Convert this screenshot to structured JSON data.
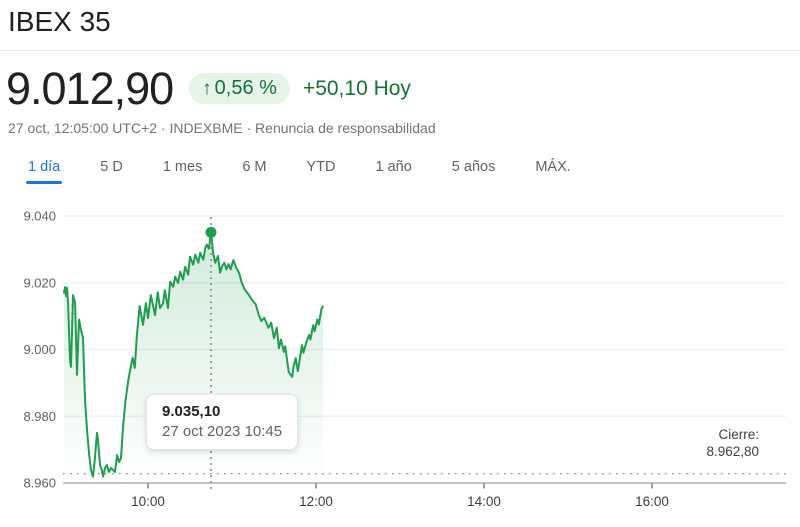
{
  "header": {
    "title": "IBEX 35",
    "price": "9.012,90",
    "change_badge": {
      "arrow": "↑",
      "percent": "0,56 %"
    },
    "change_today": "+50,10 Hoy",
    "subtitle_prefix": "27 oct, 12:05:00 UTC+2 · INDEXBME · ",
    "subtitle_disclaimer": "Renuncia de responsabilidad"
  },
  "tabs": [
    {
      "id": "1d",
      "label": "1 día",
      "active": true
    },
    {
      "id": "5d",
      "label": "5 D",
      "active": false
    },
    {
      "id": "1m",
      "label": "1 mes",
      "active": false
    },
    {
      "id": "6m",
      "label": "6 M",
      "active": false
    },
    {
      "id": "ytd",
      "label": "YTD",
      "active": false
    },
    {
      "id": "1y",
      "label": "1 año",
      "active": false
    },
    {
      "id": "5y",
      "label": "5 años",
      "active": false
    },
    {
      "id": "max",
      "label": "MÁX.",
      "active": false
    }
  ],
  "chart_data": {
    "type": "line",
    "title": "IBEX 35 intraday price, 27 oct 2023",
    "xlabel": "",
    "ylabel": "",
    "time_base": "09:00",
    "x_axis": {
      "range_minutes": [
        0,
        516
      ],
      "ticks": [
        {
          "label": "10:00",
          "minute": 60
        },
        {
          "label": "12:00",
          "minute": 180
        },
        {
          "label": "14:00",
          "minute": 300
        },
        {
          "label": "16:00",
          "minute": 420
        }
      ]
    },
    "y_axis": {
      "range": [
        8960,
        9040
      ],
      "ticks": [
        {
          "label": "9.040",
          "value": 9040
        },
        {
          "label": "9.020",
          "value": 9020
        },
        {
          "label": "9.000",
          "value": 9000
        },
        {
          "label": "8.980",
          "value": 8980
        },
        {
          "label": "8.960",
          "value": 8960
        }
      ]
    },
    "previous_close": {
      "label": "Cierre:",
      "display": "8.962,80",
      "value": 8962.8
    },
    "marker": {
      "minute": 105,
      "value": 9035.1,
      "time_label": "10:45"
    },
    "tooltip": {
      "price": "9.035,10",
      "datetime": "27 oct 2023 10:45"
    },
    "colors": {
      "line": "#1e9e4e",
      "fill_top": "rgba(27,158,74,0.20)",
      "fill_bottom": "rgba(27,158,74,0)",
      "grid": "#edeff0",
      "axis": "#9aa0a6",
      "dotted": "#80868b",
      "badge_bg": "#e6f4ea",
      "green_text": "#137333",
      "active_tab": "#1a73e8"
    },
    "series": [
      {
        "name": "IBEX 35",
        "points": [
          [
            0,
            9017
          ],
          [
            0.7,
            9018.7
          ],
          [
            1.5,
            9016
          ],
          [
            2.2,
            9018.5
          ],
          [
            3,
            9013
          ],
          [
            4.3,
            8997
          ],
          [
            5,
            8994.8
          ],
          [
            6.4,
            9016.3
          ],
          [
            7.9,
            9014
          ],
          [
            9.3,
            8992.4
          ],
          [
            10.7,
            9009
          ],
          [
            12.1,
            9006
          ],
          [
            13.6,
            9003.5
          ],
          [
            15,
            8985
          ],
          [
            16.4,
            8976
          ],
          [
            18,
            8968.4
          ],
          [
            19.3,
            8963.9
          ],
          [
            20.7,
            8961.9
          ],
          [
            22,
            8967
          ],
          [
            23.6,
            8975
          ],
          [
            24.3,
            8972.9
          ],
          [
            25.7,
            8965.4
          ],
          [
            27,
            8963.9
          ],
          [
            27.9,
            8961.9
          ],
          [
            29.3,
            8964.5
          ],
          [
            30.7,
            8965.4
          ],
          [
            32,
            8963.3
          ],
          [
            33.6,
            8964.5
          ],
          [
            35,
            8963.9
          ],
          [
            36.4,
            8963.3
          ],
          [
            37.9,
            8968.4
          ],
          [
            39.3,
            8966.3
          ],
          [
            40.7,
            8967.5
          ],
          [
            42,
            8975.9
          ],
          [
            44,
            8985
          ],
          [
            46,
            8991
          ],
          [
            48,
            8995.5
          ],
          [
            49,
            8997.5
          ],
          [
            50.6,
            8994.5
          ],
          [
            52,
            9004
          ],
          [
            54,
            9013
          ],
          [
            56.4,
            9007.4
          ],
          [
            58.5,
            9013.9
          ],
          [
            60,
            9009.4
          ],
          [
            62,
            9016.3
          ],
          [
            65,
            9010.3
          ],
          [
            67,
            9017.2
          ],
          [
            68.6,
            9012.4
          ],
          [
            70.8,
            9013.9
          ],
          [
            72,
            9017.8
          ],
          [
            74.3,
            9012.4
          ],
          [
            75.8,
            9020.3
          ],
          [
            78,
            9018.8
          ],
          [
            79.4,
            9021.8
          ],
          [
            81.5,
            9020
          ],
          [
            83,
            9023.3
          ],
          [
            85,
            9020.9
          ],
          [
            86.6,
            9024.8
          ],
          [
            88.7,
            9022.4
          ],
          [
            90,
            9027.8
          ],
          [
            92.3,
            9025.4
          ],
          [
            93.8,
            9028.4
          ],
          [
            96,
            9026
          ],
          [
            97.3,
            9029
          ],
          [
            99.5,
            9026.9
          ],
          [
            101,
            9030.5
          ],
          [
            102,
            9031.4
          ],
          [
            103.5,
            9030.2
          ],
          [
            105,
            9035.1
          ],
          [
            106.5,
            9029
          ],
          [
            108,
            9026
          ],
          [
            110,
            9028
          ],
          [
            111.5,
            9023
          ],
          [
            113,
            9025
          ],
          [
            114.5,
            9026
          ],
          [
            116,
            9024
          ],
          [
            117.5,
            9025.6
          ],
          [
            119,
            9024
          ],
          [
            121,
            9026.8
          ],
          [
            123,
            9024.5
          ],
          [
            125,
            9023
          ],
          [
            127,
            9020
          ],
          [
            129,
            9018
          ],
          [
            132,
            9016.4
          ],
          [
            134,
            9015
          ],
          [
            137,
            9013.5
          ],
          [
            139,
            9010.5
          ],
          [
            141,
            9008.5
          ],
          [
            143,
            9009.5
          ],
          [
            146,
            9006.5
          ],
          [
            148,
            9008
          ],
          [
            150,
            9003.4
          ],
          [
            152,
            9006.5
          ],
          [
            153.5,
            9000.4
          ],
          [
            155,
            9003
          ],
          [
            157,
            8999.3
          ],
          [
            158,
            9001
          ],
          [
            160.5,
            8993.3
          ],
          [
            163,
            8991.8
          ],
          [
            164,
            8995
          ],
          [
            165.5,
            8997.4
          ],
          [
            167,
            8993.5
          ],
          [
            168,
            8996
          ],
          [
            170,
            9001.3
          ],
          [
            171,
            8999
          ],
          [
            173,
            9002
          ],
          [
            175,
            9004.3
          ],
          [
            176,
            9003
          ],
          [
            178,
            9007.3
          ],
          [
            179,
            9005.5
          ],
          [
            181,
            9009
          ],
          [
            182,
            9007.5
          ],
          [
            184,
            9012.4
          ],
          [
            185,
            9012.9
          ]
        ]
      }
    ],
    "legend": {
      "visible": false
    },
    "grid": true
  }
}
